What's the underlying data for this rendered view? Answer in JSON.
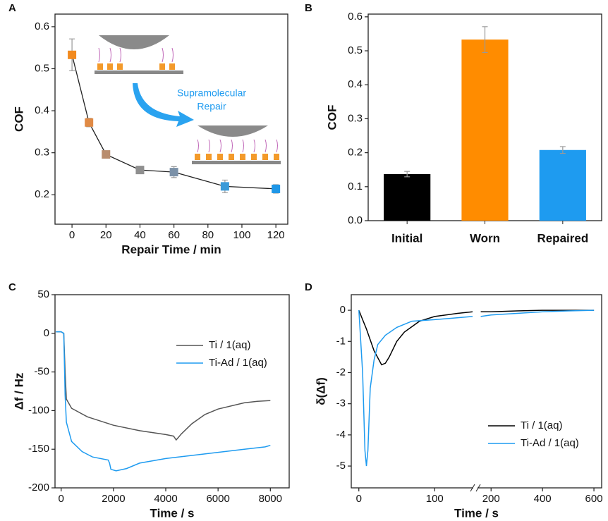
{
  "chart_data": [
    {
      "type": "line",
      "panel_label": "A",
      "xlabel": "Repair Time / min",
      "ylabel": "COF",
      "x": [
        0,
        10,
        20,
        40,
        60,
        90,
        120
      ],
      "values": [
        0.533,
        0.372,
        0.296,
        0.259,
        0.254,
        0.22,
        0.214
      ],
      "errors": [
        0.038,
        0.01,
        0.005,
        0.005,
        0.013,
        0.015,
        0.01
      ],
      "colors": [
        "#f28a1e",
        "#e08a45",
        "#b98d6e",
        "#8f8f8f",
        "#7b91a8",
        "#3a9ad8",
        "#1e97e8"
      ],
      "line_color": "#222222",
      "xlim": [
        -10,
        127
      ],
      "xticks": [
        0,
        20,
        40,
        60,
        80,
        100,
        120
      ],
      "ylim": [
        0.13,
        0.63
      ],
      "yticks": [
        0.2,
        0.3,
        0.4,
        0.5,
        0.6
      ],
      "annotation": [
        "Supramolecular",
        "Repair"
      ]
    },
    {
      "type": "bar",
      "panel_label": "B",
      "ylabel": "COF",
      "categories": [
        "Initial",
        "Worn",
        "Repaired"
      ],
      "values": [
        0.137,
        0.533,
        0.208
      ],
      "errors": [
        0.008,
        0.038,
        0.01
      ],
      "colors": [
        "#000000",
        "#ff8c00",
        "#1e9bf0"
      ],
      "ylim": [
        0,
        0.608
      ],
      "yticks": [
        {
          "value": 0,
          "label": "0.0"
        },
        0.1,
        0.2,
        0.3,
        0.4,
        0.5,
        0.6
      ]
    },
    {
      "type": "line",
      "panel_label": "C",
      "xlabel": "Time / s",
      "ylabel": "Δf / Hz",
      "legend": "upper right",
      "series": [
        {
          "name": "Ti / 1(aq)",
          "color": "#555555",
          "x": [
            -200,
            0,
            100,
            150,
            200,
            400,
            1000,
            2000,
            3000,
            4000,
            4300,
            4400,
            4600,
            5000,
            5500,
            6000,
            7000,
            7500,
            8000
          ],
          "values": [
            2,
            2,
            0,
            -50,
            -85,
            -97,
            -108,
            -119,
            -126,
            -131,
            -133,
            -138,
            -130,
            -117,
            -105,
            -98,
            -90,
            -88,
            -87
          ]
        },
        {
          "name": "Ti-Ad / 1(aq)",
          "color": "#1e9bf0",
          "x": [
            -200,
            0,
            100,
            150,
            200,
            400,
            800,
            1200,
            1800,
            1850,
            1900,
            2100,
            2500,
            3000,
            4000,
            5000,
            6000,
            7000,
            7800,
            8000
          ],
          "values": [
            2,
            2,
            0,
            -80,
            -115,
            -140,
            -153,
            -160,
            -164,
            -168,
            -176,
            -178,
            -175,
            -168,
            -162,
            -158,
            -154,
            -150,
            -147,
            -145
          ]
        }
      ],
      "xlim": [
        -235,
        8720
      ],
      "xticks": [
        0,
        2000,
        4000,
        6000,
        8000
      ],
      "ylim": [
        -200,
        50
      ],
      "yticks": [
        -200,
        -150,
        -100,
        -50,
        0,
        50
      ]
    },
    {
      "type": "line",
      "panel_label": "D",
      "xlabel": "Time / s",
      "ylabel": "δ(Δf)",
      "legend": "lower right",
      "series": [
        {
          "name": "Ti / 1(aq)",
          "color": "#000000",
          "x": [
            0,
            5,
            10,
            20,
            30,
            35,
            40,
            50,
            60,
            80,
            100,
            130,
            150,
            155,
            160,
            200,
            300,
            400,
            500,
            600
          ],
          "values": [
            0,
            -0.3,
            -0.6,
            -1.3,
            -1.75,
            -1.7,
            -1.5,
            -1.0,
            -0.7,
            -0.35,
            -0.2,
            -0.1,
            -0.05,
            null,
            -0.05,
            -0.05,
            -0.02,
            0,
            0,
            0
          ]
        },
        {
          "name": "Ti-Ad / 1(aq)",
          "color": "#1e9bf0",
          "x": [
            0,
            5,
            8,
            10,
            12,
            15,
            20,
            25,
            35,
            50,
            70,
            100,
            150,
            155,
            160,
            200,
            300,
            400,
            500,
            600
          ],
          "values": [
            0,
            -2,
            -4.5,
            -5.0,
            -4.5,
            -2.5,
            -1.6,
            -1.1,
            -0.8,
            -0.55,
            -0.35,
            -0.3,
            -0.2,
            null,
            -0.2,
            -0.15,
            -0.1,
            -0.05,
            -0.02,
            0
          ]
        }
      ],
      "xsegments": [
        [
          -10,
          150
        ],
        [
          150,
          630
        ]
      ],
      "xticks": [
        0,
        100,
        200,
        400,
        600
      ],
      "ylim": [
        -5.7,
        0.5
      ],
      "yticks": [
        -5,
        -4,
        -3,
        -2,
        -1,
        0
      ]
    }
  ]
}
